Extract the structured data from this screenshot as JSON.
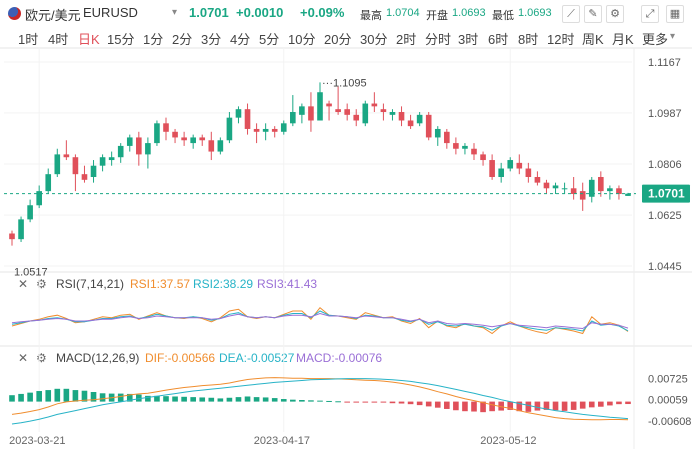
{
  "header": {
    "symbol_name": "欧元/美元",
    "symbol_code": "EURUSD",
    "dropdown_glyph": "▾",
    "last_price": "1.0701",
    "change": "+0.0010",
    "change_pct": "+0.09%",
    "high_label": "最高",
    "high_value": "1.0704",
    "open_label": "开盘",
    "open_value": "1.0693",
    "low_label": "最低",
    "low_value": "1.0693",
    "up_color": "#1aa784",
    "down_color": "#e0505a"
  },
  "toolbar": {
    "icons": [
      "line-chart-icon",
      "draw-pencil-icon",
      "gear-icon",
      "expand-icon",
      "grid-icon"
    ],
    "glyphs": [
      "⟋",
      "✎",
      "⚙",
      "⤢",
      "▦"
    ]
  },
  "timeframes": {
    "items": [
      "1时",
      "4时",
      "日K",
      "15分",
      "1分",
      "2分",
      "3分",
      "4分",
      "5分",
      "10分",
      "20分",
      "30分",
      "2时",
      "分时",
      "3时",
      "6时",
      "8时",
      "12时",
      "周K",
      "月K",
      "更多"
    ],
    "active": "日K",
    "more_glyph": "▾"
  },
  "chart_data": [
    {
      "type": "candlestick",
      "title": "",
      "price_axis_ticks": [
        1.1167,
        1.0987,
        1.0806,
        1.0625,
        1.0445
      ],
      "ylim": [
        1.0445,
        1.1167
      ],
      "x_ticks": [
        "2023-03-21",
        "2023-04-17",
        "2023-05-12"
      ],
      "last_price_line": 1.0701,
      "annotations": {
        "max_label": "1.1095",
        "min_label": "1.0517"
      },
      "candles": [
        {
          "o": 1.056,
          "h": 1.057,
          "l": 1.0517,
          "c": 1.054
        },
        {
          "o": 1.054,
          "h": 1.062,
          "l": 1.053,
          "c": 1.061
        },
        {
          "o": 1.061,
          "h": 1.068,
          "l": 1.06,
          "c": 1.066
        },
        {
          "o": 1.066,
          "h": 1.073,
          "l": 1.065,
          "c": 1.071
        },
        {
          "o": 1.071,
          "h": 1.079,
          "l": 1.07,
          "c": 1.077
        },
        {
          "o": 1.077,
          "h": 1.086,
          "l": 1.076,
          "c": 1.084
        },
        {
          "o": 1.084,
          "h": 1.089,
          "l": 1.082,
          "c": 1.083
        },
        {
          "o": 1.083,
          "h": 1.084,
          "l": 1.071,
          "c": 1.077
        },
        {
          "o": 1.077,
          "h": 1.08,
          "l": 1.074,
          "c": 1.075
        },
        {
          "o": 1.076,
          "h": 1.082,
          "l": 1.074,
          "c": 1.08
        },
        {
          "o": 1.08,
          "h": 1.084,
          "l": 1.078,
          "c": 1.083
        },
        {
          "o": 1.082,
          "h": 1.085,
          "l": 1.08,
          "c": 1.083
        },
        {
          "o": 1.083,
          "h": 1.088,
          "l": 1.081,
          "c": 1.087
        },
        {
          "o": 1.087,
          "h": 1.091,
          "l": 1.085,
          "c": 1.09
        },
        {
          "o": 1.09,
          "h": 1.092,
          "l": 1.08,
          "c": 1.084
        },
        {
          "o": 1.084,
          "h": 1.09,
          "l": 1.079,
          "c": 1.088
        },
        {
          "o": 1.088,
          "h": 1.096,
          "l": 1.087,
          "c": 1.095
        },
        {
          "o": 1.095,
          "h": 1.097,
          "l": 1.089,
          "c": 1.092
        },
        {
          "o": 1.092,
          "h": 1.093,
          "l": 1.088,
          "c": 1.09
        },
        {
          "o": 1.09,
          "h": 1.092,
          "l": 1.087,
          "c": 1.089
        },
        {
          "o": 1.088,
          "h": 1.091,
          "l": 1.086,
          "c": 1.09
        },
        {
          "o": 1.09,
          "h": 1.091,
          "l": 1.087,
          "c": 1.089
        },
        {
          "o": 1.089,
          "h": 1.092,
          "l": 1.082,
          "c": 1.085
        },
        {
          "o": 1.085,
          "h": 1.09,
          "l": 1.084,
          "c": 1.089
        },
        {
          "o": 1.089,
          "h": 1.099,
          "l": 1.088,
          "c": 1.097
        },
        {
          "o": 1.097,
          "h": 1.101,
          "l": 1.095,
          "c": 1.1
        },
        {
          "o": 1.1,
          "h": 1.102,
          "l": 1.091,
          "c": 1.093
        },
        {
          "o": 1.093,
          "h": 1.095,
          "l": 1.088,
          "c": 1.092
        },
        {
          "o": 1.092,
          "h": 1.095,
          "l": 1.089,
          "c": 1.093
        },
        {
          "o": 1.093,
          "h": 1.094,
          "l": 1.09,
          "c": 1.092
        },
        {
          "o": 1.092,
          "h": 1.096,
          "l": 1.091,
          "c": 1.095
        },
        {
          "o": 1.095,
          "h": 1.105,
          "l": 1.094,
          "c": 1.099
        },
        {
          "o": 1.098,
          "h": 1.102,
          "l": 1.095,
          "c": 1.101
        },
        {
          "o": 1.101,
          "h": 1.106,
          "l": 1.092,
          "c": 1.096
        },
        {
          "o": 1.096,
          "h": 1.1095,
          "l": 1.096,
          "c": 1.106
        },
        {
          "o": 1.102,
          "h": 1.103,
          "l": 1.096,
          "c": 1.101
        },
        {
          "o": 1.1,
          "h": 1.108,
          "l": 1.098,
          "c": 1.099
        },
        {
          "o": 1.1,
          "h": 1.102,
          "l": 1.096,
          "c": 1.098
        },
        {
          "o": 1.098,
          "h": 1.1,
          "l": 1.094,
          "c": 1.096
        },
        {
          "o": 1.095,
          "h": 1.103,
          "l": 1.094,
          "c": 1.102
        },
        {
          "o": 1.102,
          "h": 1.106,
          "l": 1.099,
          "c": 1.101
        },
        {
          "o": 1.1,
          "h": 1.102,
          "l": 1.096,
          "c": 1.099
        },
        {
          "o": 1.098,
          "h": 1.1,
          "l": 1.096,
          "c": 1.099
        },
        {
          "o": 1.099,
          "h": 1.101,
          "l": 1.094,
          "c": 1.096
        },
        {
          "o": 1.096,
          "h": 1.098,
          "l": 1.093,
          "c": 1.094
        },
        {
          "o": 1.095,
          "h": 1.099,
          "l": 1.094,
          "c": 1.098
        },
        {
          "o": 1.098,
          "h": 1.099,
          "l": 1.089,
          "c": 1.09
        },
        {
          "o": 1.09,
          "h": 1.094,
          "l": 1.087,
          "c": 1.093
        },
        {
          "o": 1.092,
          "h": 1.093,
          "l": 1.086,
          "c": 1.088
        },
        {
          "o": 1.088,
          "h": 1.09,
          "l": 1.084,
          "c": 1.086
        },
        {
          "o": 1.086,
          "h": 1.088,
          "l": 1.084,
          "c": 1.087
        },
        {
          "o": 1.086,
          "h": 1.088,
          "l": 1.082,
          "c": 1.084
        },
        {
          "o": 1.084,
          "h": 1.085,
          "l": 1.08,
          "c": 1.082
        },
        {
          "o": 1.082,
          "h": 1.084,
          "l": 1.075,
          "c": 1.076
        },
        {
          "o": 1.076,
          "h": 1.081,
          "l": 1.074,
          "c": 1.079
        },
        {
          "o": 1.079,
          "h": 1.083,
          "l": 1.078,
          "c": 1.082
        },
        {
          "o": 1.081,
          "h": 1.084,
          "l": 1.077,
          "c": 1.079
        },
        {
          "o": 1.079,
          "h": 1.081,
          "l": 1.074,
          "c": 1.076
        },
        {
          "o": 1.076,
          "h": 1.078,
          "l": 1.073,
          "c": 1.074
        },
        {
          "o": 1.074,
          "h": 1.075,
          "l": 1.07,
          "c": 1.072
        },
        {
          "o": 1.072,
          "h": 1.074,
          "l": 1.07,
          "c": 1.073
        },
        {
          "o": 1.072,
          "h": 1.074,
          "l": 1.07,
          "c": 1.072
        },
        {
          "o": 1.072,
          "h": 1.076,
          "l": 1.068,
          "c": 1.07
        },
        {
          "o": 1.071,
          "h": 1.074,
          "l": 1.064,
          "c": 1.068
        },
        {
          "o": 1.069,
          "h": 1.076,
          "l": 1.067,
          "c": 1.075
        },
        {
          "o": 1.076,
          "h": 1.078,
          "l": 1.069,
          "c": 1.071
        },
        {
          "o": 1.071,
          "h": 1.073,
          "l": 1.068,
          "c": 1.072
        },
        {
          "o": 1.072,
          "h": 1.073,
          "l": 1.068,
          "c": 1.07
        },
        {
          "o": 1.0693,
          "h": 1.0704,
          "l": 1.0693,
          "c": 1.0701
        }
      ]
    },
    {
      "type": "line",
      "name": "RSI",
      "label": "RSI(7,14,21)",
      "ylim": [
        20,
        80
      ],
      "series": [
        {
          "name": "RSI1:37.57",
          "color": "#f08d2e",
          "values": [
            44,
            47,
            50,
            52,
            55,
            57,
            53,
            48,
            49,
            52,
            55,
            54,
            57,
            58,
            52,
            56,
            60,
            56,
            54,
            53,
            55,
            53,
            49,
            54,
            62,
            64,
            55,
            53,
            55,
            54,
            58,
            62,
            62,
            52,
            66,
            57,
            56,
            54,
            52,
            60,
            57,
            54,
            55,
            50,
            47,
            53,
            42,
            50,
            44,
            42,
            47,
            44,
            42,
            35,
            44,
            49,
            44,
            40,
            37,
            35,
            42,
            40,
            38,
            35,
            55,
            46,
            48,
            45,
            37.57
          ]
        },
        {
          "name": "RSI2:38.29",
          "color": "#27b3c7",
          "values": [
            46,
            48,
            50,
            51,
            53,
            54,
            52,
            49,
            49,
            51,
            53,
            53,
            55,
            56,
            53,
            55,
            58,
            56,
            54,
            54,
            55,
            54,
            51,
            53,
            58,
            60,
            55,
            54,
            55,
            54,
            57,
            59,
            59,
            54,
            62,
            57,
            56,
            55,
            53,
            57,
            56,
            54,
            54,
            51,
            49,
            52,
            46,
            49,
            45,
            44,
            46,
            44,
            43,
            39,
            44,
            47,
            44,
            42,
            40,
            39,
            42,
            41,
            40,
            38,
            50,
            45,
            46,
            44,
            38.29
          ]
        },
        {
          "name": "RSI3:41.43",
          "color": "#9a6fd6",
          "values": [
            48,
            49,
            50,
            51,
            52,
            53,
            52,
            50,
            50,
            51,
            52,
            52,
            54,
            55,
            53,
            54,
            56,
            55,
            54,
            54,
            54,
            54,
            52,
            53,
            56,
            58,
            55,
            54,
            55,
            54,
            56,
            57,
            57,
            55,
            59,
            56,
            56,
            55,
            54,
            56,
            55,
            54,
            54,
            52,
            50,
            52,
            48,
            50,
            47,
            46,
            47,
            46,
            45,
            43,
            45,
            47,
            45,
            44,
            43,
            42,
            44,
            43,
            42,
            41,
            48,
            46,
            46,
            45,
            41.43
          ]
        }
      ]
    },
    {
      "type": "bar+line",
      "name": "MACD",
      "label": "MACD(12,26,9)",
      "y_ticks": [
        0.00725,
        0.00059,
        -0.00608
      ],
      "ylim": [
        -0.0095,
        0.0105
      ],
      "dif": {
        "name": "DIF:-0.00566",
        "color": "#f08d2e",
        "values": [
          -0.004,
          -0.0036,
          -0.0031,
          -0.0025,
          -0.0017,
          -0.0007,
          -0.0001,
          0.0002,
          0.0004,
          0.0006,
          0.0009,
          0.0012,
          0.0016,
          0.0021,
          0.0024,
          0.0026,
          0.0031,
          0.0036,
          0.004,
          0.0044,
          0.0047,
          0.005,
          0.0052,
          0.0054,
          0.0058,
          0.0064,
          0.0069,
          0.0072,
          0.0074,
          0.0075,
          0.0074,
          0.0073,
          0.0073,
          0.0072,
          0.0072,
          0.0072,
          0.0071,
          0.007,
          0.0068,
          0.0067,
          0.0066,
          0.0064,
          0.0061,
          0.0057,
          0.0052,
          0.0046,
          0.0039,
          0.0031,
          0.0024,
          0.0016,
          0.0009,
          0.0003,
          -0.0003,
          -0.001,
          -0.0016,
          -0.0021,
          -0.0028,
          -0.0035,
          -0.004,
          -0.0045,
          -0.005,
          -0.0053,
          -0.0055,
          -0.0056,
          -0.0057,
          -0.0057,
          -0.0056,
          -0.0056,
          -0.0057
        ]
      },
      "dea": {
        "name": "DEA:-0.00527",
        "color": "#27b3c7",
        "values": [
          -0.007,
          -0.0066,
          -0.0061,
          -0.0055,
          -0.0048,
          -0.004,
          -0.0034,
          -0.0028,
          -0.0022,
          -0.0016,
          -0.001,
          -0.0005,
          -0.0001,
          0.0004,
          0.0009,
          0.0013,
          0.0017,
          0.0021,
          0.0025,
          0.0029,
          0.0033,
          0.0036,
          0.0039,
          0.0042,
          0.0045,
          0.0048,
          0.0051,
          0.0054,
          0.0057,
          0.006,
          0.0062,
          0.0064,
          0.0066,
          0.0068,
          0.0069,
          0.007,
          0.0071,
          0.0072,
          0.0072,
          0.0072,
          0.0071,
          0.007,
          0.0068,
          0.0066,
          0.0063,
          0.0059,
          0.0055,
          0.005,
          0.0044,
          0.0038,
          0.0032,
          0.0026,
          0.0019,
          0.0013,
          0.0006,
          0.0,
          -0.0006,
          -0.0012,
          -0.0018,
          -0.0023,
          -0.0028,
          -0.0032,
          -0.0036,
          -0.004,
          -0.0043,
          -0.0046,
          -0.0049,
          -0.0051,
          -0.0053
        ]
      },
      "macd": {
        "name": "MACD:-0.00076",
        "up_color": "#1aa784",
        "down_color": "#e0505a",
        "values": [
          0.002,
          0.0024,
          0.0028,
          0.0033,
          0.0036,
          0.004,
          0.004,
          0.0036,
          0.0034,
          0.003,
          0.0026,
          0.0025,
          0.0025,
          0.0024,
          0.0022,
          0.0018,
          0.0018,
          0.0017,
          0.0016,
          0.0015,
          0.0014,
          0.0013,
          0.0012,
          0.001,
          0.0012,
          0.0014,
          0.0016,
          0.0014,
          0.0013,
          0.0011,
          0.0008,
          0.0006,
          0.0005,
          0.0004,
          0.0003,
          0.0002,
          0.0001,
          -0.0001,
          -0.0002,
          -0.0003,
          -0.0002,
          -0.0003,
          -0.0005,
          -0.0006,
          -0.0008,
          -0.0011,
          -0.0015,
          -0.0019,
          -0.0023,
          -0.0027,
          -0.003,
          -0.0031,
          -0.0033,
          -0.003,
          -0.0028,
          -0.0026,
          -0.003,
          -0.0032,
          -0.0028,
          -0.0026,
          -0.0027,
          -0.0029,
          -0.0026,
          -0.0022,
          -0.0018,
          -0.0016,
          -0.0012,
          -0.0008,
          -0.00076
        ]
      }
    }
  ]
}
